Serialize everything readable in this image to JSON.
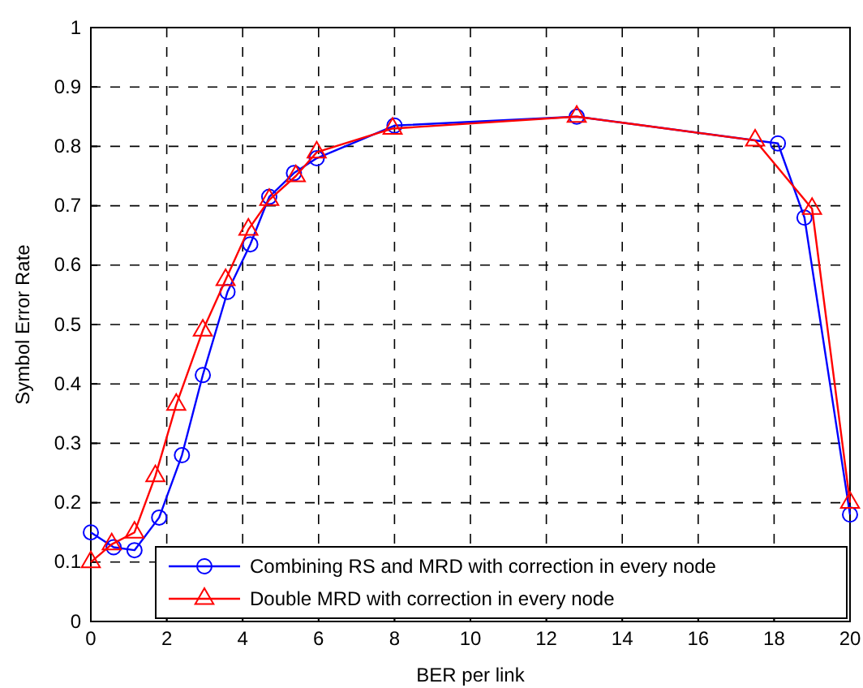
{
  "chart_data": {
    "type": "line",
    "xlabel": "BER per link",
    "ylabel": "Symbol Error Rate",
    "xlim": [
      0,
      20
    ],
    "ylim": [
      0,
      1
    ],
    "xticks": [
      0,
      2,
      4,
      6,
      8,
      10,
      12,
      14,
      16,
      18,
      20
    ],
    "yticks": [
      0,
      0.1,
      0.2,
      0.3,
      0.4,
      0.5,
      0.6,
      0.7,
      0.8,
      0.9,
      1
    ],
    "grid": true,
    "legend": "bottom right",
    "line_style": "solid",
    "series": [
      {
        "name": "Combining RS and MRD with correction in every node",
        "color": "#0000ff",
        "marker": "circle",
        "x": [
          0,
          0.6,
          1.15,
          1.8,
          2.4,
          2.95,
          3.6,
          4.2,
          4.7,
          5.35,
          5.95,
          8,
          12.8,
          18.1,
          18.8,
          20
        ],
        "values": [
          0.15,
          0.125,
          0.12,
          0.175,
          0.28,
          0.415,
          0.555,
          0.635,
          0.715,
          0.755,
          0.78,
          0.835,
          0.85,
          0.805,
          0.68,
          0.18
        ]
      },
      {
        "name": "Double MRD with correction in every node",
        "color": "#ff0000",
        "marker": "triangle",
        "x": [
          0,
          0.55,
          1.15,
          1.7,
          2.25,
          2.95,
          3.55,
          4.15,
          4.7,
          5.4,
          5.95,
          7.95,
          12.8,
          17.5,
          19,
          20
        ],
        "values": [
          0.1,
          0.13,
          0.15,
          0.245,
          0.365,
          0.49,
          0.575,
          0.66,
          0.71,
          0.75,
          0.79,
          0.83,
          0.85,
          0.81,
          0.695,
          0.2
        ]
      }
    ]
  }
}
